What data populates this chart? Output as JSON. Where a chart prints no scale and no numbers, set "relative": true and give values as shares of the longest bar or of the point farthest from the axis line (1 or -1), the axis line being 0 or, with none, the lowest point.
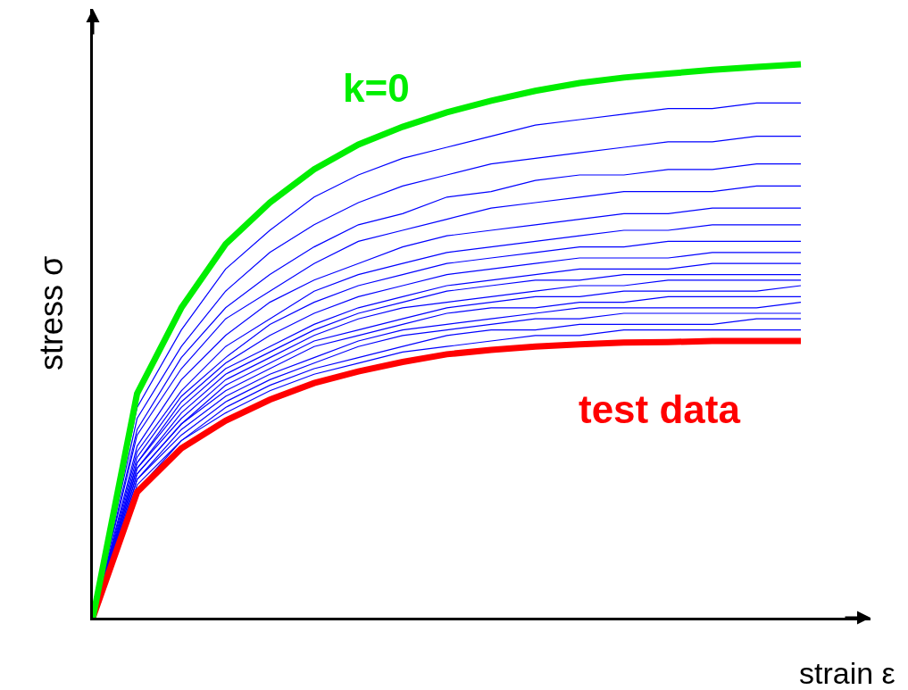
{
  "chart_data": {
    "type": "line",
    "relative": true,
    "xlabel": "strain ε",
    "ylabel": "stress σ",
    "categories": [
      null,
      null,
      null,
      null,
      null,
      null,
      null,
      null,
      null,
      null,
      null,
      null,
      null,
      null,
      null,
      null,
      null
    ],
    "series": [
      {
        "color": "#0000ff",
        "values": [
          0,
          0.38,
          0.52,
          0.63,
          0.7,
          0.76,
          0.8,
          0.83,
          0.85,
          0.87,
          0.89,
          0.9,
          0.91,
          0.92,
          0.92,
          0.93,
          0.93
        ]
      },
      {
        "color": "#0000ff",
        "values": [
          0,
          0.36,
          0.49,
          0.59,
          0.66,
          0.71,
          0.75,
          0.78,
          0.8,
          0.82,
          0.83,
          0.84,
          0.85,
          0.86,
          0.86,
          0.87,
          0.87
        ]
      },
      {
        "color": "#0000ff",
        "values": [
          0,
          0.34,
          0.47,
          0.56,
          0.62,
          0.67,
          0.71,
          0.73,
          0.76,
          0.77,
          0.79,
          0.8,
          0.8,
          0.81,
          0.81,
          0.82,
          0.82
        ]
      },
      {
        "color": "#0000ff",
        "values": [
          0,
          0.33,
          0.45,
          0.54,
          0.59,
          0.64,
          0.68,
          0.7,
          0.72,
          0.74,
          0.75,
          0.76,
          0.77,
          0.77,
          0.77,
          0.78,
          0.78
        ]
      },
      {
        "color": "#0000ff",
        "values": [
          0,
          0.31,
          0.43,
          0.51,
          0.57,
          0.61,
          0.64,
          0.67,
          0.69,
          0.7,
          0.71,
          0.72,
          0.73,
          0.73,
          0.74,
          0.74,
          0.74
        ]
      },
      {
        "color": "#0000ff",
        "values": [
          0,
          0.3,
          0.41,
          0.49,
          0.54,
          0.59,
          0.62,
          0.64,
          0.66,
          0.67,
          0.68,
          0.69,
          0.7,
          0.7,
          0.71,
          0.71,
          0.71
        ]
      },
      {
        "color": "#0000ff",
        "values": [
          0,
          0.29,
          0.4,
          0.47,
          0.53,
          0.57,
          0.6,
          0.62,
          0.64,
          0.65,
          0.66,
          0.67,
          0.67,
          0.68,
          0.68,
          0.68,
          0.68
        ]
      },
      {
        "color": "#0000ff",
        "values": [
          0,
          0.28,
          0.39,
          0.46,
          0.51,
          0.55,
          0.58,
          0.6,
          0.62,
          0.63,
          0.64,
          0.65,
          0.65,
          0.65,
          0.66,
          0.66,
          0.66
        ]
      },
      {
        "color": "#0000ff",
        "values": [
          0,
          0.28,
          0.38,
          0.45,
          0.49,
          0.53,
          0.56,
          0.58,
          0.6,
          0.61,
          0.62,
          0.63,
          0.63,
          0.63,
          0.64,
          0.64,
          0.64
        ]
      },
      {
        "color": "#0000ff",
        "values": [
          0,
          0.27,
          0.37,
          0.44,
          0.48,
          0.52,
          0.55,
          0.57,
          0.59,
          0.6,
          0.61,
          0.61,
          0.62,
          0.62,
          0.62,
          0.62,
          0.62
        ]
      },
      {
        "color": "#0000ff",
        "values": [
          0,
          0.27,
          0.36,
          0.43,
          0.47,
          0.51,
          0.54,
          0.56,
          0.57,
          0.58,
          0.59,
          0.6,
          0.6,
          0.61,
          0.61,
          0.61,
          0.61
        ]
      },
      {
        "color": "#0000ff",
        "values": [
          0,
          0.26,
          0.35,
          0.42,
          0.46,
          0.5,
          0.52,
          0.54,
          0.56,
          0.57,
          0.58,
          0.58,
          0.59,
          0.59,
          0.59,
          0.59,
          0.6
        ]
      },
      {
        "color": "#0000ff",
        "values": [
          0,
          0.26,
          0.35,
          0.41,
          0.45,
          0.49,
          0.51,
          0.53,
          0.55,
          0.56,
          0.56,
          0.57,
          0.57,
          0.58,
          0.58,
          0.58,
          0.58
        ]
      },
      {
        "color": "#0000ff",
        "values": [
          0,
          0.25,
          0.34,
          0.4,
          0.44,
          0.47,
          0.5,
          0.52,
          0.53,
          0.54,
          0.55,
          0.56,
          0.56,
          0.56,
          0.56,
          0.56,
          0.57
        ]
      },
      {
        "color": "#0000ff",
        "values": [
          0,
          0.25,
          0.33,
          0.39,
          0.43,
          0.46,
          0.49,
          0.51,
          0.52,
          0.53,
          0.54,
          0.54,
          0.55,
          0.55,
          0.55,
          0.55,
          0.55
        ]
      },
      {
        "color": "#0000ff",
        "values": [
          0,
          0.24,
          0.32,
          0.38,
          0.42,
          0.45,
          0.47,
          0.49,
          0.51,
          0.52,
          0.52,
          0.53,
          0.53,
          0.53,
          0.53,
          0.54,
          0.54
        ]
      },
      {
        "color": "#0000ff",
        "values": [
          0,
          0.23,
          0.32,
          0.37,
          0.41,
          0.44,
          0.46,
          0.48,
          0.49,
          0.5,
          0.51,
          0.51,
          0.52,
          0.52,
          0.52,
          0.52,
          0.52
        ]
      },
      {
        "name": "test data",
        "color": "#ff0000",
        "values": [
          0,
          0.227,
          0.306,
          0.356,
          0.394,
          0.424,
          0.445,
          0.462,
          0.476,
          0.484,
          0.49,
          0.494,
          0.497,
          0.498,
          0.5,
          0.5,
          0.5
        ]
      },
      {
        "name": "k=0",
        "color": "#00ee00",
        "values": [
          0,
          0.405,
          0.56,
          0.675,
          0.75,
          0.81,
          0.855,
          0.887,
          0.913,
          0.934,
          0.952,
          0.966,
          0.976,
          0.983,
          0.99,
          0.995,
          1.0
        ]
      }
    ]
  }
}
